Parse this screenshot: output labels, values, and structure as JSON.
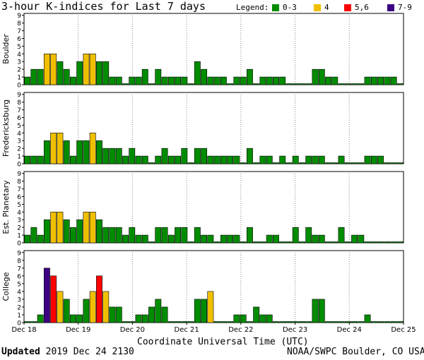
{
  "title": "3-hour K-indices for Last 7 days",
  "legend": {
    "label": "Legend:",
    "items": [
      {
        "label": "0-3",
        "color": "#008c00"
      },
      {
        "label": "4",
        "color": "#f0c000"
      },
      {
        "label": "5,6",
        "color": "#ff0000"
      },
      {
        "label": "7-9",
        "color": "#3c0082"
      }
    ]
  },
  "x_axis_title": "Coordinate Universal Time (UTC)",
  "footer": {
    "updated_label": "Updated",
    "updated_value": "2019 Dec 24 2130",
    "credit": "NOAA/SWPC Boulder, CO USA"
  },
  "chart_data": [
    {
      "type": "bar",
      "ylabel": "Boulder",
      "ylim": [
        0,
        9
      ],
      "yticks": [
        "0",
        "1",
        "2",
        "3",
        "4",
        "5",
        "6",
        "7",
        "8",
        "9"
      ],
      "xticks": [
        "Dec 18",
        "Dec 19",
        "Dec 20",
        "Dec 21",
        "Dec 22",
        "Dec 23",
        "Dec 24",
        "Dec 25"
      ],
      "values": [
        1,
        2,
        2,
        4,
        4,
        3,
        2,
        1,
        3,
        4,
        4,
        3,
        3,
        1,
        1,
        0,
        1,
        1,
        2,
        0,
        2,
        1,
        1,
        1,
        1,
        0,
        3,
        2,
        1,
        1,
        1,
        0,
        1,
        1,
        2,
        0,
        1,
        1,
        1,
        1,
        0,
        0,
        0,
        0,
        2,
        2,
        1,
        1,
        0,
        0,
        0,
        0,
        1,
        1,
        1,
        1,
        1,
        0
      ]
    },
    {
      "type": "bar",
      "ylabel": "Fredericksburg",
      "ylim": [
        0,
        9
      ],
      "yticks": [
        "0",
        "1",
        "2",
        "3",
        "4",
        "5",
        "6",
        "7",
        "8",
        "9"
      ],
      "xticks": [
        "Dec 18",
        "Dec 19",
        "Dec 20",
        "Dec 21",
        "Dec 22",
        "Dec 23",
        "Dec 24",
        "Dec 25"
      ],
      "values": [
        1,
        1,
        1,
        3,
        4,
        4,
        3,
        1,
        3,
        3,
        4,
        3,
        2,
        2,
        2,
        1,
        2,
        1,
        1,
        0,
        1,
        2,
        1,
        1,
        2,
        0,
        2,
        2,
        1,
        1,
        1,
        1,
        1,
        0,
        2,
        0,
        1,
        1,
        0,
        1,
        0,
        1,
        0,
        1,
        1,
        1,
        0,
        0,
        1,
        0,
        0,
        0,
        1,
        1,
        1,
        0,
        0,
        0
      ]
    },
    {
      "type": "bar",
      "ylabel": "Est. Planetary",
      "ylim": [
        0,
        9
      ],
      "yticks": [
        "0",
        "1",
        "2",
        "3",
        "4",
        "5",
        "6",
        "7",
        "8",
        "9"
      ],
      "xticks": [
        "Dec 18",
        "Dec 19",
        "Dec 20",
        "Dec 21",
        "Dec 22",
        "Dec 23",
        "Dec 24",
        "Dec 25"
      ],
      "values": [
        1,
        2,
        1,
        3,
        4,
        4,
        3,
        2,
        3,
        4,
        4,
        3,
        2,
        2,
        2,
        1,
        2,
        1,
        1,
        0,
        2,
        2,
        1,
        2,
        2,
        0,
        2,
        1,
        1,
        0,
        1,
        1,
        1,
        0,
        2,
        0,
        0,
        1,
        1,
        0,
        0,
        2,
        0,
        2,
        1,
        1,
        0,
        0,
        2,
        0,
        1,
        1,
        0,
        0,
        0,
        0,
        0,
        0
      ]
    },
    {
      "type": "bar",
      "ylabel": "College",
      "ylim": [
        0,
        9
      ],
      "yticks": [
        "0",
        "1",
        "2",
        "3",
        "4",
        "5",
        "6",
        "7",
        "8",
        "9"
      ],
      "xticks": [
        "Dec 18",
        "Dec 19",
        "Dec 20",
        "Dec 21",
        "Dec 22",
        "Dec 23",
        "Dec 24",
        "Dec 25"
      ],
      "values": [
        0,
        0,
        1,
        7,
        6,
        4,
        3,
        1,
        1,
        3,
        4,
        6,
        4,
        2,
        2,
        0,
        0,
        1,
        1,
        2,
        3,
        2,
        0,
        0,
        0,
        0,
        3,
        3,
        4,
        0,
        0,
        0,
        1,
        1,
        0,
        2,
        1,
        1,
        0,
        0,
        0,
        0,
        0,
        0,
        3,
        3,
        0,
        0,
        0,
        0,
        0,
        0,
        1,
        0,
        0,
        0,
        0,
        0
      ]
    }
  ]
}
